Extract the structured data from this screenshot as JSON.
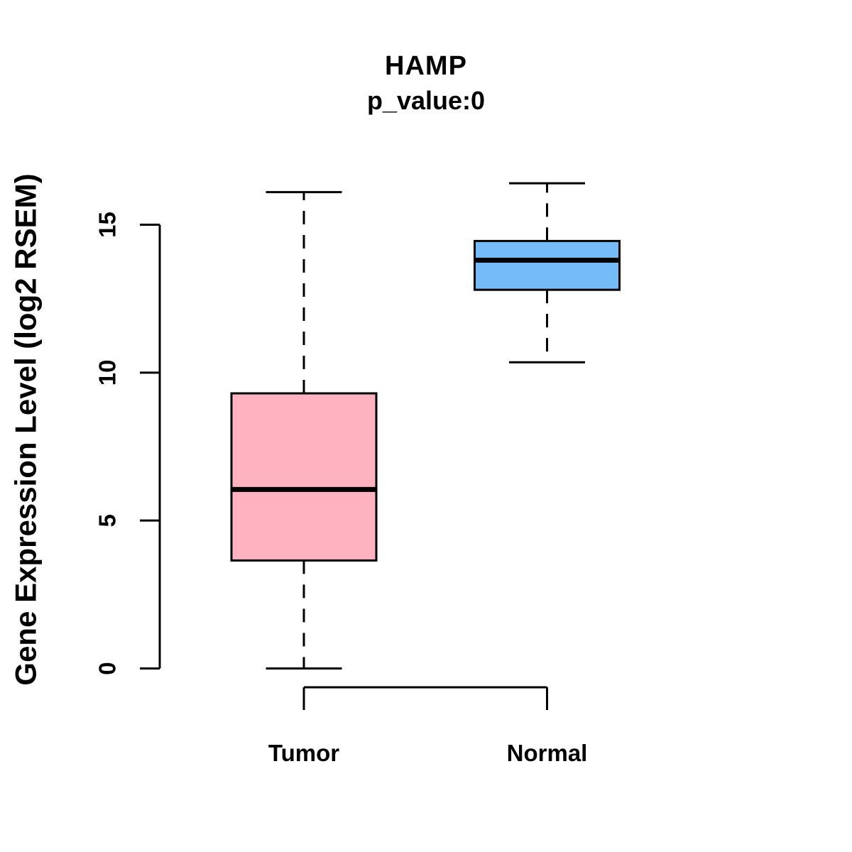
{
  "chart_data": {
    "type": "boxplot",
    "title": "HAMP",
    "subtitle": "p_value:0",
    "ylabel": "Gene Expression Level (log2 RSEM)",
    "xlabel": "",
    "ylim": [
      0,
      15
    ],
    "yticks": [
      0,
      5,
      10,
      15
    ],
    "grid": false,
    "legend": "none",
    "categories": [
      "Tumor",
      "Normal"
    ],
    "series": [
      {
        "name": "Tumor",
        "color": "#FFB3C1",
        "whisker_low": 0.0,
        "q1": 3.65,
        "median": 6.05,
        "q3": 9.3,
        "whisker_high": 16.1
      },
      {
        "name": "Normal",
        "color": "#74BCF8",
        "whisker_low": 10.35,
        "q1": 12.8,
        "median": 13.8,
        "q3": 14.45,
        "whisker_high": 16.4
      }
    ],
    "colors": {
      "box_border": "#000000",
      "median_line": "#000000",
      "axis": "#000000",
      "background": "#FFFFFF"
    }
  }
}
